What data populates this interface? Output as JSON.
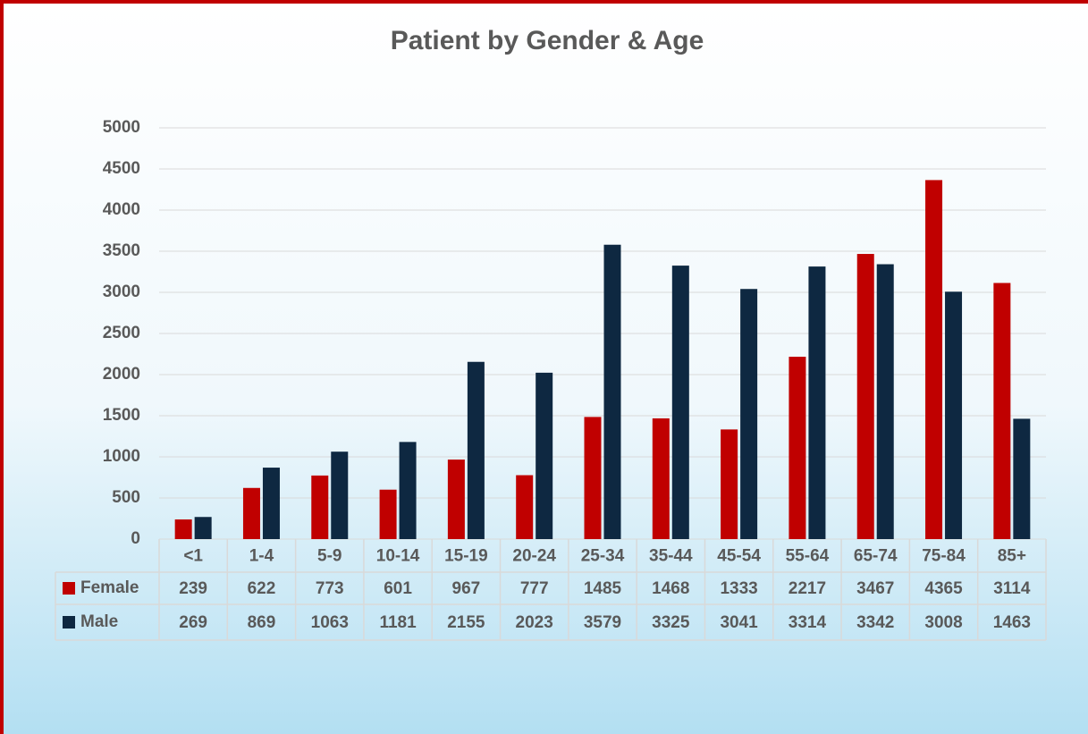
{
  "chart_data": {
    "type": "bar",
    "title": "Patient by Gender & Age",
    "categories": [
      "<1",
      "1-4",
      "5-9",
      "10-14",
      "15-19",
      "20-24",
      "25-34",
      "35-44",
      "45-54",
      "55-64",
      "65-74",
      "75-84",
      "85+"
    ],
    "series": [
      {
        "name": "Female",
        "color": "#c00000",
        "values": [
          239,
          622,
          773,
          601,
          967,
          777,
          1485,
          1468,
          1333,
          2217,
          3467,
          4365,
          3114
        ]
      },
      {
        "name": "Male",
        "color": "#0e2841",
        "values": [
          269,
          869,
          1063,
          1181,
          2155,
          2023,
          3579,
          3325,
          3041,
          3314,
          3342,
          3008,
          1463
        ]
      }
    ],
    "ylim": [
      0,
      5000
    ],
    "yticks": [
      0,
      500,
      1000,
      1500,
      2000,
      2500,
      3000,
      3500,
      4000,
      4500,
      5000
    ],
    "grid": true
  }
}
